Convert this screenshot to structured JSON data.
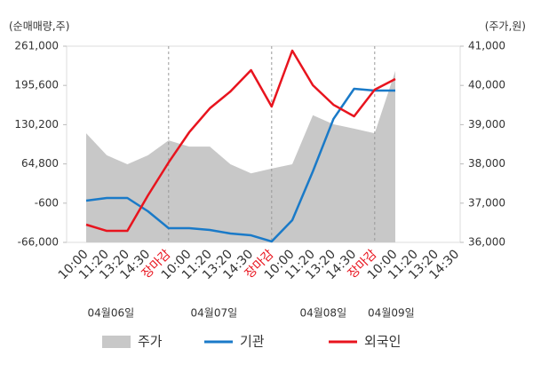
{
  "chart_data": {
    "type": "line",
    "y_axis_label": "(순매매량,주)",
    "y2_axis_label": "(주가,원)",
    "categories": [
      "10:00",
      "11:20",
      "13:20",
      "14:30",
      "장마감",
      "10:00",
      "11:20",
      "13:20",
      "14:30",
      "장마감",
      "10:00",
      "11:20",
      "13:20",
      "14:30",
      "장마감",
      "10:00",
      "11:20",
      "13:20",
      "14:30"
    ],
    "highlight_categories": [
      4,
      9,
      14
    ],
    "highlight_color": "#e8141e",
    "date_labels": [
      "04월06일",
      "04월07일",
      "04월08일",
      "04월09일"
    ],
    "series": [
      {
        "name": "주가",
        "style": "area",
        "axis": "y2",
        "color": "#c8c8c8",
        "values": [
          38780,
          38220,
          37990,
          38220,
          38600,
          38440,
          38440,
          37990,
          37760,
          37880,
          37990,
          39240,
          39010,
          38900,
          38780,
          40370,
          null,
          null,
          null
        ]
      },
      {
        "name": "기관",
        "style": "line",
        "color": "#1a7ac8",
        "values": [
          3500,
          8000,
          8000,
          -14200,
          -42300,
          -42300,
          -45300,
          -51200,
          -54200,
          -64500,
          -29000,
          52400,
          139700,
          190000,
          187000,
          187000,
          null,
          null,
          null
        ]
      },
      {
        "name": "외국인",
        "style": "line",
        "color": "#e8141e",
        "values": [
          -36400,
          -46800,
          -46800,
          12400,
          67200,
          117500,
          157400,
          185500,
          221000,
          160400,
          253600,
          195900,
          163300,
          144100,
          188500,
          206300,
          null,
          null,
          null
        ]
      }
    ],
    "ylim": [
      -66000,
      261000
    ],
    "yticks": [
      {
        "value": -66000,
        "label": "-66,000"
      },
      -600,
      {
        "value": 64800,
        "label": "64,800"
      },
      {
        "value": 130200,
        "label": "130,200"
      },
      {
        "value": 195600,
        "label": "195,600"
      },
      {
        "value": 261000,
        "label": "261,000"
      }
    ],
    "y2lim": [
      36000,
      41000
    ],
    "y2ticks": [
      {
        "value": 36000,
        "label": "36,000"
      },
      {
        "value": 37000,
        "label": "37,000"
      },
      {
        "value": 38000,
        "label": "38,000"
      },
      {
        "value": 39000,
        "label": "39,000"
      },
      {
        "value": 40000,
        "label": "40,000"
      },
      {
        "value": 41000,
        "label": "41,000"
      }
    ]
  }
}
